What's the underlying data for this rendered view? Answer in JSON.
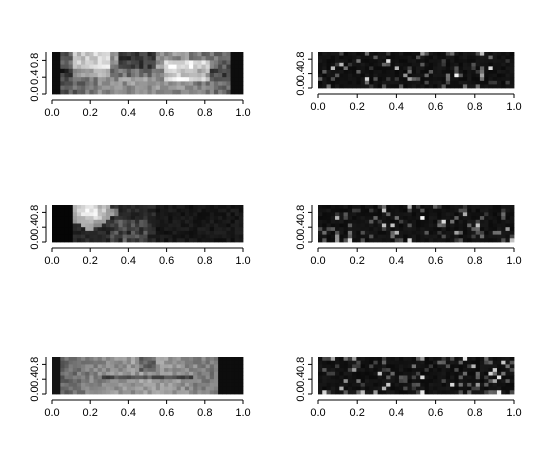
{
  "chart_data": [
    {
      "type": "heatmap",
      "panel": "top-left",
      "colormap": "grayscale",
      "pattern": "face-full",
      "seed": 11,
      "x_ticks": [
        "0.0",
        "0.2",
        "0.4",
        "0.6",
        "0.8",
        "1.0"
      ],
      "y_ticks": [
        "0.0",
        "0.4",
        "0.8"
      ],
      "xlim": [
        0,
        1
      ],
      "ylim": [
        0,
        1
      ]
    },
    {
      "type": "heatmap",
      "panel": "top-right",
      "colormap": "grayscale",
      "pattern": "sparse-noise",
      "seed": 101,
      "x_ticks": [
        "0.0",
        "0.2",
        "0.4",
        "0.6",
        "0.8",
        "1.0"
      ],
      "y_ticks": [
        "0.0",
        "0.4",
        "0.8"
      ],
      "xlim": [
        0,
        1
      ],
      "ylim": [
        0,
        1
      ]
    },
    {
      "type": "heatmap",
      "panel": "middle-left",
      "colormap": "grayscale",
      "pattern": "face-left-bright",
      "seed": 22,
      "x_ticks": [
        "0.0",
        "0.2",
        "0.4",
        "0.6",
        "0.8",
        "1.0"
      ],
      "y_ticks": [
        "0.0",
        "0.4",
        "0.8"
      ],
      "xlim": [
        0,
        1
      ],
      "ylim": [
        0,
        1
      ]
    },
    {
      "type": "heatmap",
      "panel": "middle-right",
      "colormap": "grayscale",
      "pattern": "sparse-noise",
      "seed": 202,
      "x_ticks": [
        "0.0",
        "0.2",
        "0.4",
        "0.6",
        "0.8",
        "1.0"
      ],
      "y_ticks": [
        "0.0",
        "0.4",
        "0.8"
      ],
      "xlim": [
        0,
        1
      ],
      "ylim": [
        0,
        1
      ]
    },
    {
      "type": "heatmap",
      "panel": "bottom-left",
      "colormap": "grayscale",
      "pattern": "face-soft",
      "seed": 33,
      "x_ticks": [
        "0.0",
        "0.2",
        "0.4",
        "0.6",
        "0.8",
        "1.0"
      ],
      "y_ticks": [
        "0.0",
        "0.4",
        "0.8"
      ],
      "xlim": [
        0,
        1
      ],
      "ylim": [
        0,
        1
      ]
    },
    {
      "type": "heatmap",
      "panel": "bottom-right",
      "colormap": "grayscale",
      "pattern": "sparse-noise",
      "seed": 303,
      "x_ticks": [
        "0.0",
        "0.2",
        "0.4",
        "0.6",
        "0.8",
        "1.0"
      ],
      "y_ticks": [
        "0.0",
        "0.4",
        "0.8"
      ],
      "xlim": [
        0,
        1
      ],
      "ylim": [
        0,
        1
      ]
    }
  ]
}
